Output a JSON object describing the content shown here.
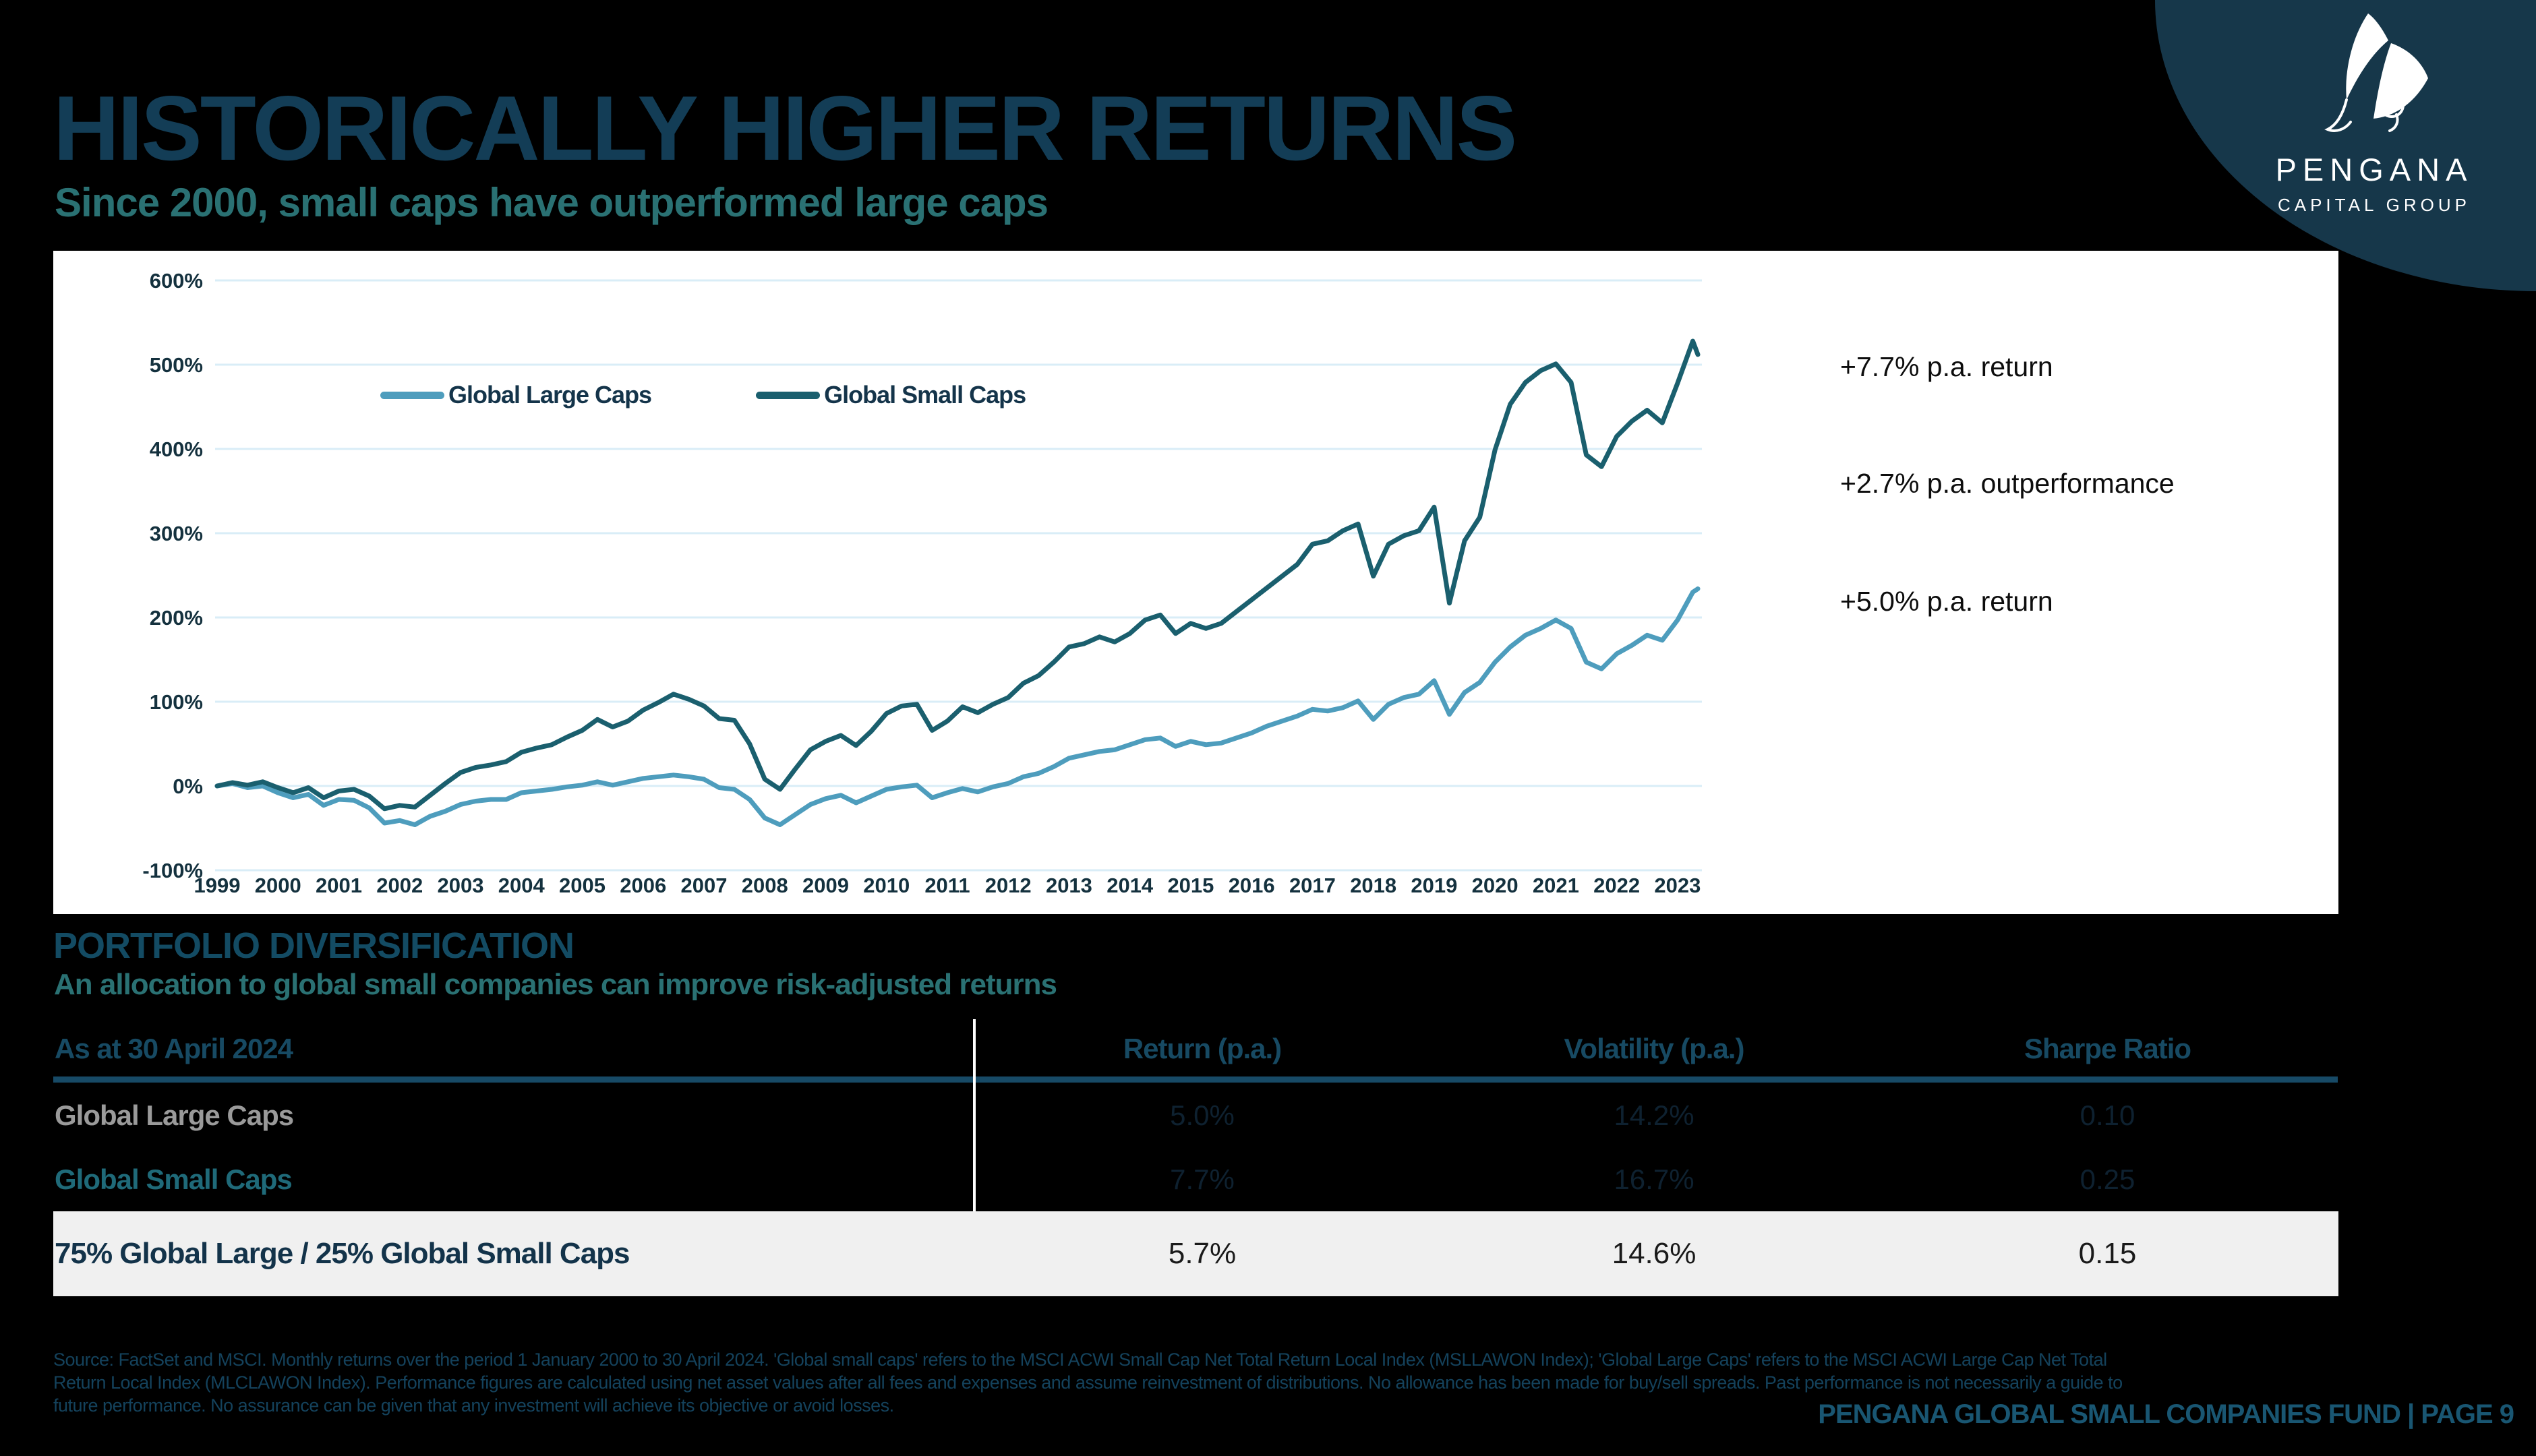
{
  "slide": {
    "title": "HISTORICALLY HIGHER RETURNS",
    "subtitle": "Since 2000, small caps have outperformed large caps",
    "section2_title": "PORTFOLIO DIVERSIFICATION",
    "section2_subtitle": "An allocation to global small companies can improve risk-adjusted returns"
  },
  "logo": {
    "brand": "PENGANA",
    "tagline": "CAPITAL GROUP",
    "bg_color": "#16374a"
  },
  "chart_data": {
    "type": "line",
    "title": "",
    "xlabel": "",
    "ylabel": "",
    "grid": true,
    "legend_position": "top-left-inside",
    "ylim": [
      -100,
      600
    ],
    "y_ticks": [
      "600%",
      "500%",
      "400%",
      "300%",
      "200%",
      "100%",
      "0%",
      "-100%"
    ],
    "y_tick_values": [
      600,
      500,
      400,
      300,
      200,
      100,
      0,
      -100
    ],
    "x_tick_labels": [
      "1999",
      "2000",
      "2001",
      "2002",
      "2003",
      "2004",
      "2005",
      "2006",
      "2007",
      "2008",
      "2009",
      "2010",
      "2011",
      "2012",
      "2013",
      "2014",
      "2015",
      "2016",
      "2017",
      "2018",
      "2019",
      "2020",
      "2021",
      "2022",
      "2023"
    ],
    "x_months_since_dec_1999": [
      0,
      3,
      6,
      9,
      12,
      15,
      18,
      21,
      24,
      27,
      30,
      33,
      36,
      39,
      42,
      45,
      48,
      51,
      54,
      57,
      60,
      63,
      66,
      69,
      72,
      75,
      78,
      81,
      84,
      87,
      90,
      93,
      96,
      99,
      102,
      105,
      108,
      111,
      114,
      117,
      120,
      123,
      126,
      129,
      132,
      135,
      138,
      141,
      144,
      147,
      150,
      153,
      156,
      159,
      162,
      165,
      168,
      171,
      174,
      177,
      180,
      183,
      186,
      189,
      192,
      195,
      198,
      201,
      204,
      207,
      210,
      213,
      216,
      219,
      222,
      225,
      228,
      231,
      234,
      237,
      240,
      243,
      246,
      249,
      252,
      255,
      258,
      261,
      264,
      267,
      270,
      273,
      276,
      279,
      282,
      285,
      288,
      291,
      292
    ],
    "series": [
      {
        "name": "Global Large Caps",
        "color": "#4e9dbd",
        "values": [
          0,
          3,
          -2,
          0,
          -8,
          -14,
          -10,
          -23,
          -16,
          -17,
          -26,
          -44,
          -41,
          -46,
          -36,
          -30,
          -22,
          -18,
          -16,
          -16,
          -8,
          -6,
          -4,
          -1,
          1,
          5,
          1,
          5,
          9,
          11,
          13,
          11,
          8,
          -2,
          -4,
          -16,
          -38,
          -46,
          -34,
          -22,
          -15,
          -11,
          -20,
          -12,
          -4,
          -1,
          1,
          -14,
          -8,
          -3,
          -7,
          -1,
          3,
          11,
          15,
          23,
          33,
          37,
          41,
          43,
          49,
          55,
          57,
          47,
          53,
          49,
          51,
          57,
          63,
          71,
          77,
          83,
          91,
          89,
          93,
          101,
          79,
          97,
          105,
          109,
          125,
          85,
          111,
          123,
          147,
          165,
          179,
          187,
          197,
          187,
          147,
          139,
          157,
          167,
          179,
          173,
          197,
          230,
          234
        ]
      },
      {
        "name": "Global Small Caps",
        "color": "#1a5f6e",
        "values": [
          0,
          4,
          1,
          5,
          -2,
          -8,
          -2,
          -14,
          -6,
          -4,
          -12,
          -27,
          -23,
          -25,
          -11,
          3,
          16,
          22,
          25,
          29,
          40,
          45,
          49,
          58,
          66,
          79,
          70,
          77,
          90,
          99,
          109,
          103,
          95,
          80,
          78,
          50,
          8,
          -4,
          20,
          43,
          53,
          60,
          48,
          65,
          86,
          95,
          97,
          66,
          77,
          94,
          87,
          97,
          105,
          122,
          131,
          147,
          165,
          169,
          177,
          171,
          181,
          197,
          203,
          181,
          193,
          187,
          193,
          207,
          221,
          235,
          249,
          263,
          287,
          291,
          303,
          311,
          249,
          287,
          297,
          303,
          331,
          217,
          291,
          319,
          399,
          453,
          479,
          493,
          501,
          479,
          393,
          379,
          415,
          433,
          446,
          431,
          478,
          528,
          512
        ]
      }
    ],
    "annotations": [
      {
        "text": "+7.7% p.a. return"
      },
      {
        "text": "+2.7% p.a. outperformance"
      },
      {
        "text": "+5.0% p.a. return"
      }
    ]
  },
  "table": {
    "headers": [
      "As at 30 April 2024",
      "Return (p.a.)",
      "Volatility (p.a.)",
      "Sharpe Ratio"
    ],
    "rows": [
      {
        "label": "Global Large Caps",
        "return": "5.0%",
        "volatility": "14.2%",
        "sharpe": "0.10"
      },
      {
        "label": "Global Small Caps",
        "return": "7.7%",
        "volatility": "16.7%",
        "sharpe": "0.25"
      },
      {
        "label": "75% Global Large / 25% Global Small Caps",
        "return": "5.7%",
        "volatility": "14.6%",
        "sharpe": "0.15"
      }
    ]
  },
  "footer": {
    "disclaimer_lines": [
      "Source: FactSet and MSCI. Monthly returns over the period 1 January 2000 to 30 April 2024. 'Global small caps' refers to the MSCI ACWI Small Cap Net Total Return Local Index (MSLLAWON Index); 'Global Large Caps' refers to the MSCI ACWI Large Cap Net Total",
      "Return Local Index (MLCLAWON Index). Performance figures are calculated using net asset values after all fees and expenses and assume reinvestment of distributions. No allowance has been made for buy/sell spreads. Past performance is not necessarily a guide to",
      "future performance. No assurance can be given that any investment will achieve its objective or avoid losses."
    ],
    "page_label": "PENGANA GLOBAL SMALL COMPANIES FUND | PAGE 9"
  },
  "colors": {
    "background": "#000000",
    "title": "#133d56",
    "teal_accent": "#2a7173",
    "panel": "#ffffff",
    "gridline": "#d9edf7",
    "large_caps_line": "#4e9dbd",
    "small_caps_line": "#1a5f6e",
    "table_header": "#174a63",
    "header_rule": "#174a66",
    "light_row": "#f0f0f0",
    "logo_navy": "#16374a"
  }
}
